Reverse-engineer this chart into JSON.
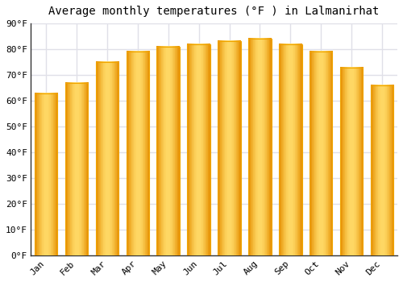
{
  "title": "Average monthly temperatures (°F ) in Lalmanirhat",
  "months": [
    "Jan",
    "Feb",
    "Mar",
    "Apr",
    "May",
    "Jun",
    "Jul",
    "Aug",
    "Sep",
    "Oct",
    "Nov",
    "Dec"
  ],
  "values": [
    63,
    67,
    75,
    79,
    81,
    82,
    83,
    84,
    82,
    79,
    73,
    66
  ],
  "bar_color_center": "#FFD966",
  "bar_color_edge": "#F0A500",
  "bar_color_dark": "#E8960A",
  "ylim": [
    0,
    90
  ],
  "yticks": [
    0,
    10,
    20,
    30,
    40,
    50,
    60,
    70,
    80,
    90
  ],
  "ytick_labels": [
    "0°F",
    "10°F",
    "20°F",
    "30°F",
    "40°F",
    "50°F",
    "60°F",
    "70°F",
    "80°F",
    "90°F"
  ],
  "background_color": "#ffffff",
  "grid_color": "#e0e0e8",
  "title_fontsize": 10,
  "tick_fontsize": 8,
  "bar_width": 0.75
}
